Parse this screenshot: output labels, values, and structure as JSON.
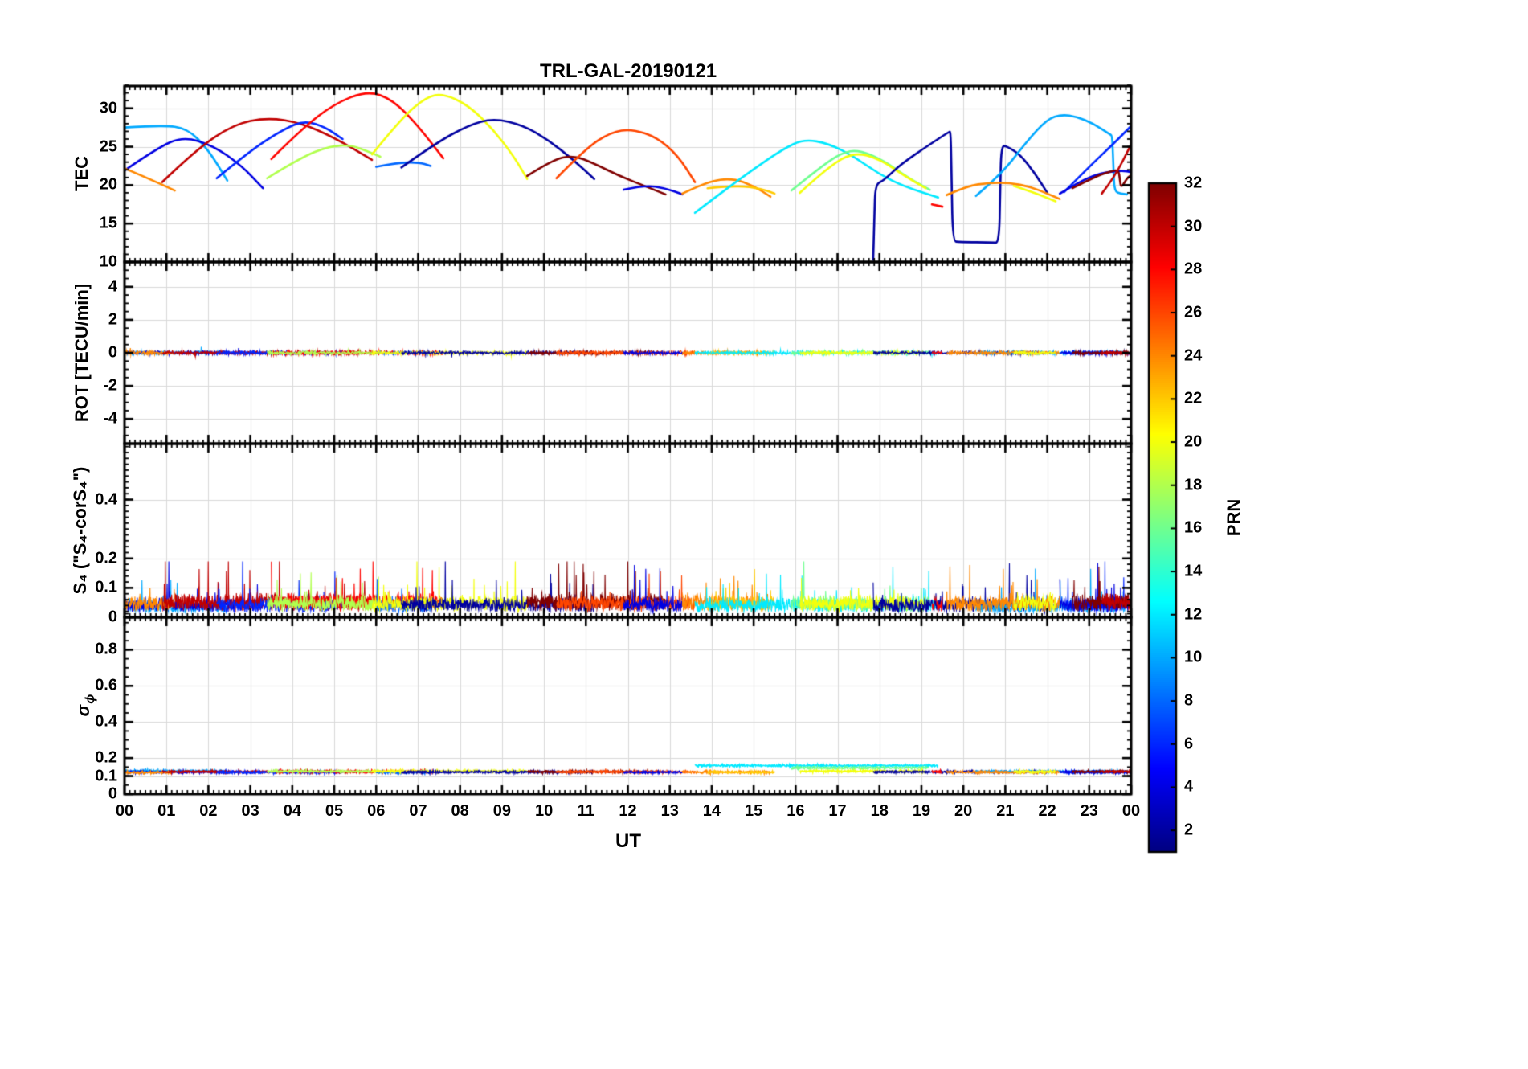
{
  "chart_data": {
    "type": "line",
    "title": "TRL-GAL-20190121",
    "xlabel": "UT",
    "x_range": [
      0,
      24
    ],
    "x_tick_labels": [
      "00",
      "01",
      "02",
      "03",
      "04",
      "05",
      "06",
      "07",
      "08",
      "09",
      "10",
      "11",
      "12",
      "13",
      "14",
      "15",
      "16",
      "17",
      "18",
      "19",
      "20",
      "21",
      "22",
      "23",
      "00"
    ],
    "grid": true,
    "panels": [
      {
        "id": "tec",
        "ylabel": "TEC",
        "ylim": [
          10,
          32.9
        ],
        "yticks": [
          10,
          15,
          20,
          25,
          30
        ],
        "ytick_labels": [
          "10",
          "15",
          "20",
          "25",
          "30"
        ]
      },
      {
        "id": "rot",
        "ylabel": "ROT [TECU/min]",
        "ylim": [
          -5.5,
          5.5
        ],
        "yticks": [
          -4,
          -2,
          0,
          2,
          4
        ],
        "ytick_labels": [
          "-4",
          "-2",
          "0",
          "2",
          "4"
        ]
      },
      {
        "id": "s4",
        "ylabel": "S₄ (\"S₄-corS₄\")",
        "ylim": [
          0,
          0.59
        ],
        "yticks": [
          0,
          0.1,
          0.2,
          0.4
        ],
        "ytick_labels": [
          "0",
          "0.1",
          "0.2",
          "0.4"
        ]
      },
      {
        "id": "sigma_phi",
        "ylabel": "σ",
        "ylabel_sub": "ϕ",
        "ylim": [
          0,
          0.98
        ],
        "yticks": [
          0,
          0.1,
          0.2,
          0.4,
          0.6,
          0.8
        ],
        "ytick_labels": [
          "0",
          "0.1",
          "0.2",
          "0.4",
          "0.6",
          "0.8"
        ]
      }
    ],
    "colorbar": {
      "label": "PRN",
      "range": [
        1,
        32
      ],
      "ticks": [
        2,
        4,
        6,
        8,
        10,
        12,
        14,
        16,
        18,
        20,
        22,
        24,
        26,
        28,
        30,
        32
      ],
      "colormap": "jet"
    },
    "series": [
      {
        "prn": 10,
        "rot": 0.15,
        "s4": [
          0.03,
          0.1
        ],
        "sigma": 0.128,
        "tec": [
          [
            0,
            27.5
          ],
          [
            0.9,
            27.8
          ],
          [
            1.5,
            27.4
          ],
          [
            2.0,
            24.6
          ],
          [
            2.45,
            20.6
          ]
        ]
      },
      {
        "prn": 4,
        "rot": 0.15,
        "s4": [
          0.035,
          0.12
        ],
        "sigma": 0.122,
        "tec": [
          [
            0,
            21.9
          ],
          [
            0.8,
            24.9
          ],
          [
            1.4,
            26.3
          ],
          [
            2.1,
            25.2
          ],
          [
            2.8,
            22.5
          ],
          [
            3.3,
            19.6
          ]
        ]
      },
      {
        "prn": 24,
        "rot": 0.18,
        "s4": [
          0.04,
          0.1
        ],
        "sigma": 0.12,
        "tec": [
          [
            0,
            22.2
          ],
          [
            0.6,
            20.8
          ],
          [
            1.2,
            19.3
          ]
        ]
      },
      {
        "prn": 30,
        "rot": 0.16,
        "s4": [
          0.045,
          0.16
        ],
        "sigma": 0.124,
        "tec": [
          [
            0.9,
            20.4
          ],
          [
            1.7,
            24.6
          ],
          [
            2.6,
            27.9
          ],
          [
            3.4,
            28.8
          ],
          [
            4.2,
            28.1
          ],
          [
            5.0,
            26.2
          ],
          [
            5.9,
            23.3
          ]
        ]
      },
      {
        "prn": 6,
        "rot": 0.15,
        "s4": [
          0.035,
          0.12
        ],
        "sigma": 0.121,
        "tec": [
          [
            2.2,
            20.9
          ],
          [
            3.0,
            24.5
          ],
          [
            3.8,
            27.3
          ],
          [
            4.3,
            28.4
          ],
          [
            4.8,
            27.5
          ],
          [
            5.2,
            26.0
          ]
        ]
      },
      {
        "prn": 28,
        "rot": 0.17,
        "s4": [
          0.045,
          0.16
        ],
        "sigma": 0.125,
        "tec": [
          [
            3.5,
            23.4
          ],
          [
            4.2,
            27.2
          ],
          [
            5.0,
            30.6
          ],
          [
            5.8,
            32.3
          ],
          [
            6.4,
            31.1
          ],
          [
            7.0,
            27.7
          ],
          [
            7.6,
            23.5
          ]
        ]
      },
      {
        "prn": 18,
        "rot": 0.15,
        "s4": [
          0.04,
          0.13
        ],
        "sigma": 0.126,
        "tec": [
          [
            3.4,
            20.9
          ],
          [
            4.2,
            23.6
          ],
          [
            4.9,
            25.1
          ],
          [
            5.4,
            25.2
          ],
          [
            5.8,
            24.4
          ],
          [
            6.1,
            23.7
          ]
        ]
      },
      {
        "prn": 8,
        "rot": 0.13,
        "s4": [
          0.03,
          0.09
        ],
        "sigma": 0.12,
        "tec": [
          [
            6.0,
            22.4
          ],
          [
            6.5,
            22.9
          ],
          [
            7.0,
            23.0
          ],
          [
            7.3,
            22.5
          ]
        ]
      },
      {
        "prn": 20,
        "rot": 0.15,
        "s4": [
          0.04,
          0.14
        ],
        "sigma": 0.127,
        "tec": [
          [
            5.9,
            24.0
          ],
          [
            6.6,
            28.7
          ],
          [
            7.2,
            31.5
          ],
          [
            7.6,
            31.9
          ],
          [
            8.2,
            30.4
          ],
          [
            8.8,
            27.2
          ],
          [
            9.3,
            23.6
          ],
          [
            9.6,
            20.8
          ]
        ]
      },
      {
        "prn": 2,
        "rot": 0.14,
        "s4": [
          0.035,
          0.13
        ],
        "sigma": 0.122,
        "tec": [
          [
            6.6,
            22.3
          ],
          [
            7.4,
            25.4
          ],
          [
            8.2,
            27.8
          ],
          [
            8.8,
            28.7
          ],
          [
            9.5,
            27.8
          ],
          [
            10.1,
            25.9
          ],
          [
            10.7,
            23.3
          ],
          [
            11.2,
            20.8
          ]
        ]
      },
      {
        "prn": 32,
        "rot": 0.16,
        "s4": [
          0.045,
          0.15
        ],
        "sigma": 0.124,
        "tec": [
          [
            9.6,
            21.2
          ],
          [
            10.2,
            23.3
          ],
          [
            10.7,
            23.9
          ],
          [
            11.2,
            22.8
          ],
          [
            11.8,
            21.2
          ],
          [
            12.4,
            19.9
          ],
          [
            12.9,
            18.8
          ]
        ]
      },
      {
        "prn": 26,
        "rot": 0.16,
        "s4": [
          0.04,
          0.15
        ],
        "sigma": 0.123,
        "tec": [
          [
            10.3,
            20.9
          ],
          [
            11.0,
            24.8
          ],
          [
            11.6,
            26.9
          ],
          [
            12.1,
            27.3
          ],
          [
            12.7,
            26.2
          ],
          [
            13.2,
            23.8
          ],
          [
            13.6,
            20.4
          ]
        ]
      },
      {
        "prn": 4,
        "rot": 0.14,
        "s4": [
          0.035,
          0.12
        ],
        "sigma": 0.121,
        "tec": [
          [
            11.9,
            19.4
          ],
          [
            12.4,
            20.0
          ],
          [
            12.9,
            19.6
          ],
          [
            13.3,
            18.8
          ]
        ]
      },
      {
        "prn": 24,
        "rot": 0.16,
        "s4": [
          0.045,
          0.15
        ],
        "sigma": 0.122,
        "tec": [
          [
            13.3,
            18.9
          ],
          [
            13.9,
            20.5
          ],
          [
            14.5,
            20.9
          ],
          [
            15.0,
            19.9
          ],
          [
            15.4,
            18.5
          ]
        ]
      },
      {
        "prn": 22,
        "rot": 0.15,
        "s4": [
          0.04,
          0.13
        ],
        "sigma": 0.121,
        "tec": [
          [
            13.9,
            19.6
          ],
          [
            14.6,
            20.0
          ],
          [
            15.2,
            19.5
          ],
          [
            15.5,
            18.9
          ]
        ]
      },
      {
        "prn": 12,
        "rot": 0.14,
        "s4": [
          0.035,
          0.11
        ],
        "sigma": 0.158,
        "tec": [
          [
            13.6,
            16.4
          ],
          [
            14.3,
            19.3
          ],
          [
            15.0,
            22.1
          ],
          [
            15.7,
            24.7
          ],
          [
            16.2,
            26.0
          ],
          [
            16.8,
            25.4
          ],
          [
            17.4,
            23.7
          ],
          [
            18.0,
            21.4
          ],
          [
            18.6,
            19.8
          ],
          [
            19.4,
            18.4
          ]
        ]
      },
      {
        "prn": 16,
        "rot": 0.14,
        "s4": [
          0.04,
          0.12
        ],
        "sigma": 0.146,
        "tec": [
          [
            15.9,
            19.3
          ],
          [
            16.6,
            22.4
          ],
          [
            17.1,
            24.2
          ],
          [
            17.5,
            24.6
          ],
          [
            18.1,
            23.2
          ],
          [
            18.7,
            20.9
          ],
          [
            19.2,
            19.4
          ]
        ]
      },
      {
        "prn": 20,
        "rot": 0.14,
        "s4": [
          0.04,
          0.13
        ],
        "sigma": 0.127,
        "tec": [
          [
            16.1,
            19.0
          ],
          [
            16.8,
            22.5
          ],
          [
            17.4,
            24.3
          ],
          [
            18.0,
            23.4
          ],
          [
            18.6,
            21.2
          ],
          [
            19.1,
            19.6
          ]
        ]
      },
      {
        "prn": 2,
        "rot": 0.14,
        "s4": [
          0.035,
          0.13
        ],
        "sigma": 0.123,
        "tec": [
          [
            17.85,
            10.3
          ],
          [
            17.88,
            16.0
          ],
          [
            17.9,
            20.1
          ],
          [
            18.1,
            20.6
          ],
          [
            18.5,
            22.7
          ],
          [
            19.2,
            25.3
          ],
          [
            19.65,
            26.9
          ],
          [
            19.7,
            27.0
          ],
          [
            19.72,
            20.0
          ],
          [
            19.75,
            12.7
          ],
          [
            19.9,
            12.6
          ],
          [
            20.7,
            12.55
          ],
          [
            20.85,
            12.5
          ],
          [
            20.88,
            19.0
          ],
          [
            20.9,
            25.2
          ],
          [
            21.05,
            25.0
          ],
          [
            21.35,
            24.0
          ],
          [
            21.7,
            21.6
          ],
          [
            22.0,
            19.0
          ]
        ]
      },
      {
        "prn": 10,
        "rot": 0.14,
        "s4": [
          0.03,
          0.12
        ],
        "sigma": 0.125,
        "tec": [
          [
            20.3,
            18.6
          ],
          [
            20.9,
            21.4
          ],
          [
            21.5,
            25.6
          ],
          [
            22.0,
            28.6
          ],
          [
            22.35,
            29.2
          ],
          [
            22.7,
            28.9
          ],
          [
            23.1,
            28.0
          ],
          [
            23.5,
            26.6
          ],
          [
            23.55,
            26.4
          ],
          [
            23.58,
            22.0
          ],
          [
            23.6,
            19.2
          ],
          [
            23.75,
            18.9
          ],
          [
            23.9,
            18.8
          ]
        ]
      },
      {
        "prn": 24,
        "rot": 0.15,
        "s4": [
          0.04,
          0.12
        ],
        "sigma": 0.122,
        "tec": [
          [
            19.6,
            18.7
          ],
          [
            20.1,
            19.9
          ],
          [
            20.6,
            20.3
          ],
          [
            21.1,
            20.3
          ],
          [
            21.6,
            19.8
          ],
          [
            22.0,
            18.9
          ],
          [
            22.3,
            18.2
          ]
        ]
      },
      {
        "prn": 20,
        "rot": 0.14,
        "s4": [
          0.04,
          0.11
        ],
        "sigma": 0.124,
        "tec": [
          [
            21.2,
            19.9
          ],
          [
            21.7,
            19.0
          ],
          [
            22.2,
            17.9
          ]
        ]
      },
      {
        "prn": 28,
        "rot": 0.13,
        "s4": [
          0.04,
          0.1
        ],
        "sigma": 0.124,
        "tec": [
          [
            19.25,
            17.5
          ],
          [
            19.5,
            17.2
          ]
        ]
      },
      {
        "prn": 6,
        "rot": 0.14,
        "s4": [
          0.035,
          0.12
        ],
        "sigma": 0.121,
        "tec": [
          [
            22.4,
            19.1
          ],
          [
            23.0,
            22.4
          ],
          [
            23.6,
            25.5
          ],
          [
            24,
            27.7
          ]
        ]
      },
      {
        "prn": 4,
        "rot": 0.14,
        "s4": [
          0.035,
          0.12
        ],
        "sigma": 0.122,
        "tec": [
          [
            22.3,
            18.9
          ],
          [
            22.9,
            20.9
          ],
          [
            23.4,
            21.7
          ],
          [
            23.8,
            21.9
          ],
          [
            24,
            21.7
          ]
        ]
      },
      {
        "prn": 32,
        "rot": 0.16,
        "s4": [
          0.045,
          0.14
        ],
        "sigma": 0.125,
        "tec": [
          [
            22.6,
            19.6
          ],
          [
            23.1,
            21.0
          ],
          [
            23.5,
            21.8
          ],
          [
            23.7,
            22.0
          ],
          [
            23.73,
            20.8
          ],
          [
            23.76,
            19.6
          ],
          [
            23.9,
            20.9
          ],
          [
            24,
            21.3
          ]
        ]
      },
      {
        "prn": 30,
        "rot": 0.16,
        "s4": [
          0.045,
          0.13
        ],
        "sigma": 0.124,
        "tec": [
          [
            23.3,
            18.9
          ],
          [
            23.6,
            21.0
          ],
          [
            24,
            25.3
          ]
        ]
      }
    ]
  }
}
